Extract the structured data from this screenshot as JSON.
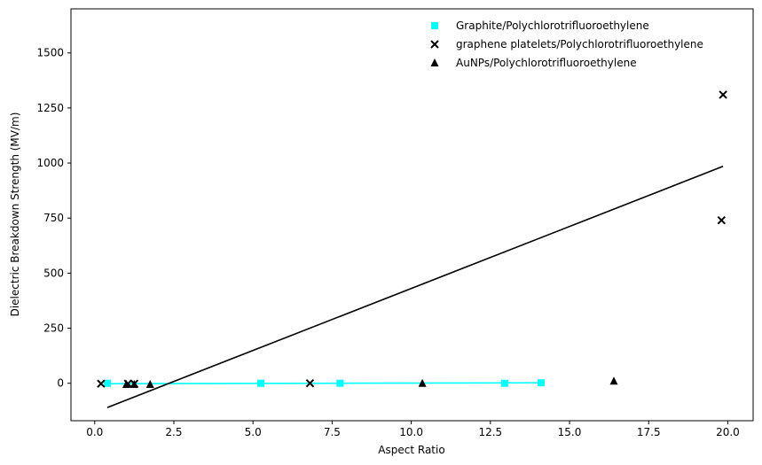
{
  "chart_data": {
    "type": "scatter",
    "xlabel": "Aspect Ratio",
    "ylabel": "Dielectric Breakdown Strength (MV/m)",
    "xlim": [
      -0.75,
      20.8
    ],
    "ylim": [
      -170,
      1700
    ],
    "xticks": [
      0.0,
      2.5,
      5.0,
      7.5,
      10.0,
      12.5,
      15.0,
      17.5,
      20.0
    ],
    "xtick_labels": [
      "0.0",
      "2.5",
      "5.0",
      "7.5",
      "10.0",
      "12.5",
      "15.0",
      "17.5",
      "20.0"
    ],
    "yticks": [
      0,
      250,
      500,
      750,
      1000,
      1250,
      1500
    ],
    "ytick_labels": [
      "0",
      "250",
      "500",
      "750",
      "1000",
      "1250",
      "1500"
    ],
    "grid": false,
    "legend_position": "top-right",
    "series": [
      {
        "name": " Graphite/Polychlorotrifluoroethylene",
        "marker": "square",
        "color": "#00ffff",
        "points": [
          [
            0.4,
            0
          ],
          [
            5.25,
            0
          ],
          [
            7.75,
            0
          ],
          [
            12.95,
            0
          ],
          [
            14.1,
            2
          ]
        ]
      },
      {
        "name": "graphene platelets/Polychlorotrifluoroethylene",
        "marker": "x",
        "color": "#000000",
        "points": [
          [
            0.2,
            -2
          ],
          [
            1.05,
            -2
          ],
          [
            1.25,
            -2
          ],
          [
            6.8,
            0
          ],
          [
            19.8,
            740
          ],
          [
            19.85,
            1310
          ]
        ]
      },
      {
        "name": "AuNPs/Polychlorotrifluoroethylene",
        "marker": "triangle",
        "color": "#000000",
        "points": [
          [
            1.0,
            -5
          ],
          [
            1.25,
            -5
          ],
          [
            1.75,
            -5
          ],
          [
            10.35,
            0
          ],
          [
            16.4,
            10
          ]
        ]
      }
    ],
    "fit_lines": [
      {
        "color": "#00ffff",
        "points": [
          [
            0.4,
            -2
          ],
          [
            14.1,
            2
          ]
        ]
      },
      {
        "color": "#000000",
        "points": [
          [
            0.4,
            -110
          ],
          [
            19.85,
            985
          ]
        ]
      }
    ]
  }
}
